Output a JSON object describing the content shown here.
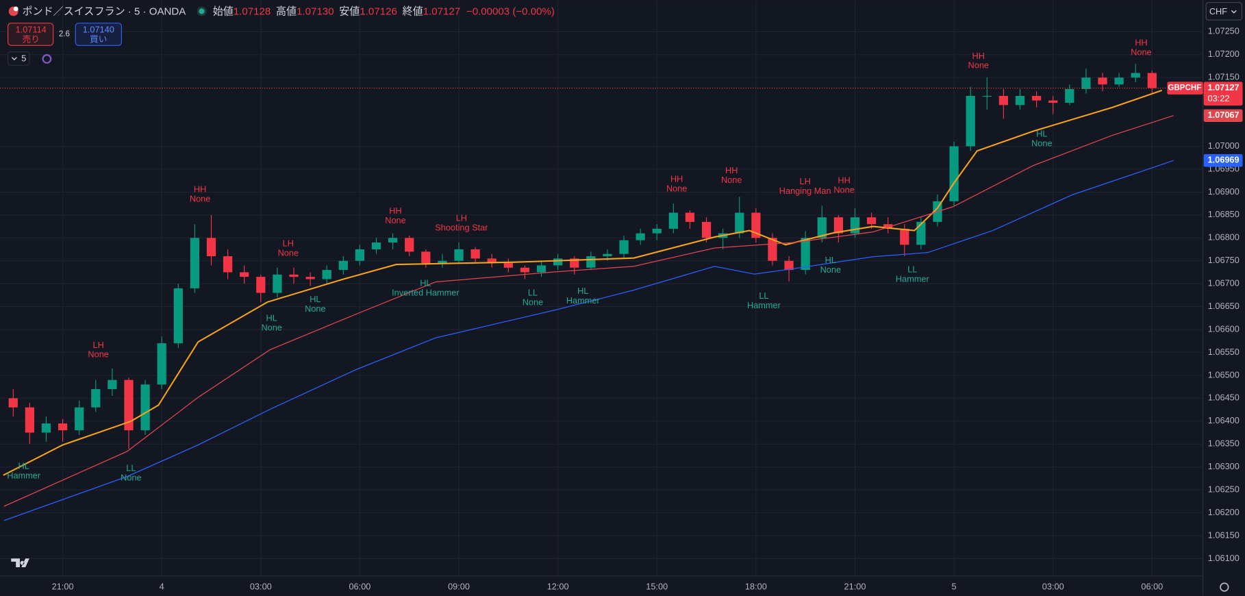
{
  "header": {
    "symbol": "ポンド／スイスフラン · 5 · OANDA",
    "ohlc": [
      {
        "label": "始値",
        "value": "1.07128"
      },
      {
        "label": "高値",
        "value": "1.07130"
      },
      {
        "label": "安値",
        "value": "1.07126"
      },
      {
        "label": "終値",
        "value": "1.07127"
      }
    ],
    "change": "−0.00003 (−0.00%)"
  },
  "trade": {
    "sell": {
      "price": "1.07114",
      "label": "売り"
    },
    "spread": "2.6",
    "buy": {
      "price": "1.07140",
      "label": "買い"
    },
    "interval": "5",
    "currency": "CHF"
  },
  "chart_data": {
    "type": "candlestick",
    "symbol": "GBPCHF",
    "countdown": "03:22",
    "up_color": "#089981",
    "down_color": "#f23645",
    "grid": true,
    "xlim": [
      -1.9,
      34.54
    ],
    "ylim": [
      1.06062,
      1.07319
    ],
    "xticks": [
      {
        "value": 0,
        "label": "21:00"
      },
      {
        "value": 3,
        "label": "4"
      },
      {
        "value": 6,
        "label": "03:00"
      },
      {
        "value": 9,
        "label": "06:00"
      },
      {
        "value": 12,
        "label": "09:00"
      },
      {
        "value": 15,
        "label": "12:00"
      },
      {
        "value": 18,
        "label": "15:00"
      },
      {
        "value": 21,
        "label": "18:00"
      },
      {
        "value": 24,
        "label": "21:00"
      },
      {
        "value": 27,
        "label": "5"
      },
      {
        "value": 30,
        "label": "03:00"
      },
      {
        "value": 33,
        "label": "06:00"
      }
    ],
    "yticks": [
      {
        "value": 1.061,
        "label": "1.06100"
      },
      {
        "value": 1.0615,
        "label": "1.06150"
      },
      {
        "value": 1.062,
        "label": "1.06200"
      },
      {
        "value": 1.0625,
        "label": "1.06250"
      },
      {
        "value": 1.063,
        "label": "1.06300"
      },
      {
        "value": 1.0635,
        "label": "1.06350"
      },
      {
        "value": 1.064,
        "label": "1.06400"
      },
      {
        "value": 1.0645,
        "label": "1.06450"
      },
      {
        "value": 1.065,
        "label": "1.06500"
      },
      {
        "value": 1.0655,
        "label": "1.06550"
      },
      {
        "value": 1.066,
        "label": "1.06600"
      },
      {
        "value": 1.0665,
        "label": "1.06650"
      },
      {
        "value": 1.067,
        "label": "1.06700"
      },
      {
        "value": 1.0675,
        "label": "1.06750"
      },
      {
        "value": 1.068,
        "label": "1.06800"
      },
      {
        "value": 1.0685,
        "label": "1.06850"
      },
      {
        "value": 1.069,
        "label": "1.06900"
      },
      {
        "value": 1.0695,
        "label": "1.06950"
      },
      {
        "value": 1.07,
        "label": "1.07000"
      },
      {
        "value": 1.0715,
        "label": "1.07150"
      },
      {
        "value": 1.072,
        "label": "1.07200"
      },
      {
        "value": 1.0725,
        "label": "1.07250"
      }
    ],
    "x": [
      -1.5,
      -1,
      -0.5,
      0,
      0.5,
      1,
      1.5,
      2,
      2.5,
      3,
      3.5,
      4,
      4.5,
      5,
      5.5,
      6,
      6.5,
      7,
      7.5,
      8,
      8.5,
      9,
      9.5,
      10,
      10.5,
      11,
      11.5,
      12,
      12.5,
      13,
      13.5,
      14,
      14.5,
      15,
      15.5,
      16,
      16.5,
      17,
      17.5,
      18,
      18.5,
      19,
      19.5,
      20,
      20.5,
      21,
      21.5,
      22,
      22.5,
      23,
      23.5,
      24,
      24.5,
      25,
      25.5,
      26,
      26.5,
      27,
      27.5,
      28,
      28.5,
      29,
      29.5,
      30,
      30.5,
      31,
      31.5,
      32,
      32.5,
      33
    ],
    "ohlc": [
      [
        1.0645,
        1.0647,
        1.0641,
        1.0643
      ],
      [
        1.0643,
        1.0644,
        1.0635,
        1.06375
      ],
      [
        1.06375,
        1.0641,
        1.06355,
        1.06395
      ],
      [
        1.06395,
        1.06405,
        1.06355,
        1.0638
      ],
      [
        1.0638,
        1.06445,
        1.0637,
        1.0643
      ],
      [
        1.0643,
        1.0649,
        1.0642,
        1.0647
      ],
      [
        1.0647,
        1.06515,
        1.06455,
        1.0649
      ],
      [
        1.0649,
        1.06495,
        1.0634,
        1.0638
      ],
      [
        1.0638,
        1.0649,
        1.0637,
        1.0648
      ],
      [
        1.0648,
        1.06585,
        1.0647,
        1.0657
      ],
      [
        1.0657,
        1.067,
        1.0656,
        1.0669
      ],
      [
        1.0669,
        1.0683,
        1.0668,
        1.068
      ],
      [
        1.068,
        1.0685,
        1.0674,
        1.0676
      ],
      [
        1.0676,
        1.06775,
        1.0671,
        1.06725
      ],
      [
        1.06725,
        1.0674,
        1.067,
        1.06715
      ],
      [
        1.06715,
        1.0672,
        1.0666,
        1.0668
      ],
      [
        1.0668,
        1.06735,
        1.0667,
        1.0672
      ],
      [
        1.0672,
        1.06735,
        1.067,
        1.06715
      ],
      [
        1.06715,
        1.06725,
        1.06695,
        1.0671
      ],
      [
        1.0671,
        1.0674,
        1.067,
        1.0673
      ],
      [
        1.0673,
        1.0676,
        1.0672,
        1.0675
      ],
      [
        1.0675,
        1.06785,
        1.0674,
        1.06775
      ],
      [
        1.06775,
        1.068,
        1.06765,
        1.0679
      ],
      [
        1.0679,
        1.0681,
        1.06775,
        1.068
      ],
      [
        1.068,
        1.06805,
        1.0676,
        1.0677
      ],
      [
        1.0677,
        1.06775,
        1.06735,
        1.06745
      ],
      [
        1.06745,
        1.06765,
        1.06735,
        1.0675
      ],
      [
        1.0675,
        1.0679,
        1.06745,
        1.06775
      ],
      [
        1.06775,
        1.0678,
        1.06745,
        1.06755
      ],
      [
        1.06755,
        1.06765,
        1.06735,
        1.06745
      ],
      [
        1.06745,
        1.06755,
        1.06725,
        1.06735
      ],
      [
        1.06735,
        1.0674,
        1.0671,
        1.06725
      ],
      [
        1.06725,
        1.0675,
        1.06715,
        1.0674
      ],
      [
        1.0674,
        1.06765,
        1.0673,
        1.06755
      ],
      [
        1.06755,
        1.0676,
        1.0672,
        1.06735
      ],
      [
        1.06735,
        1.0677,
        1.0673,
        1.0676
      ],
      [
        1.0676,
        1.06775,
        1.0675,
        1.06765
      ],
      [
        1.06765,
        1.06805,
        1.06755,
        1.06795
      ],
      [
        1.06795,
        1.0682,
        1.06785,
        1.0681
      ],
      [
        1.0681,
        1.0683,
        1.06795,
        1.0682
      ],
      [
        1.0682,
        1.06875,
        1.0681,
        1.06855
      ],
      [
        1.06855,
        1.0686,
        1.0682,
        1.06835
      ],
      [
        1.06835,
        1.06845,
        1.0679,
        1.068
      ],
      [
        1.068,
        1.0682,
        1.06775,
        1.0681
      ],
      [
        1.0681,
        1.0689,
        1.068,
        1.06855
      ],
      [
        1.06855,
        1.06865,
        1.0679,
        1.068
      ],
      [
        1.068,
        1.0681,
        1.0674,
        1.0675
      ],
      [
        1.0675,
        1.0676,
        1.06705,
        1.0673
      ],
      [
        1.0673,
        1.06815,
        1.0672,
        1.068
      ],
      [
        1.068,
        1.0687,
        1.0679,
        1.06845
      ],
      [
        1.06845,
        1.0685,
        1.0679,
        1.0681
      ],
      [
        1.0681,
        1.06865,
        1.068,
        1.06845
      ],
      [
        1.06845,
        1.06855,
        1.0682,
        1.0683
      ],
      [
        1.0683,
        1.06845,
        1.0681,
        1.0682
      ],
      [
        1.0682,
        1.0683,
        1.0676,
        1.06785
      ],
      [
        1.06785,
        1.06845,
        1.06775,
        1.06835
      ],
      [
        1.06835,
        1.06895,
        1.06825,
        1.0688
      ],
      [
        1.0688,
        1.0701,
        1.0687,
        1.07
      ],
      [
        1.07,
        1.0713,
        1.0699,
        1.0711
      ],
      [
        1.0711,
        1.0715,
        1.0708,
        1.0711
      ],
      [
        1.0711,
        1.07125,
        1.0706,
        1.0709
      ],
      [
        1.0709,
        1.07125,
        1.0708,
        1.0711
      ],
      [
        1.0711,
        1.0712,
        1.07085,
        1.071
      ],
      [
        1.071,
        1.0711,
        1.0707,
        1.07095
      ],
      [
        1.07095,
        1.07135,
        1.0709,
        1.07125
      ],
      [
        1.07125,
        1.0717,
        1.07115,
        1.0715
      ],
      [
        1.0715,
        1.0716,
        1.0712,
        1.07135
      ],
      [
        1.07135,
        1.0716,
        1.0713,
        1.0715
      ],
      [
        1.0715,
        1.0718,
        1.0714,
        1.0716
      ],
      [
        1.0716,
        1.07165,
        1.07115,
        1.07127
      ]
    ],
    "series": [
      {
        "color": "#f7a21b",
        "x": [
          -1.8,
          0,
          2.07,
          2.9,
          4.1,
          6.2,
          8.5,
          10.1,
          13.7,
          17.3,
          19.75,
          20.8,
          21.9,
          23.35,
          24.55,
          25.8,
          26.5,
          27,
          27.7,
          29.4,
          31.8,
          33.3
        ],
        "values": [
          1.06282,
          1.06348,
          1.064,
          1.06435,
          1.06573,
          1.0666,
          1.0671,
          1.06742,
          1.06747,
          1.06756,
          1.06802,
          1.06816,
          1.06785,
          1.06811,
          1.06825,
          1.06816,
          1.06865,
          1.0692,
          1.0699,
          1.07033,
          1.07085,
          1.07122
        ]
      },
      {
        "color": "#e0464e",
        "x": [
          -1.78,
          1.95,
          4.1,
          6.28,
          8.9,
          11.3,
          14.94,
          17.3,
          19.75,
          22.15,
          24.55,
          26.97,
          29.4,
          31.8,
          33.65
        ],
        "values": [
          1.06214,
          1.06334,
          1.06452,
          1.06556,
          1.06634,
          1.06704,
          1.06726,
          1.06738,
          1.06778,
          1.0679,
          1.06813,
          1.06868,
          1.06958,
          1.07024,
          1.07067
        ]
      },
      {
        "color": "#2962ff",
        "x": [
          -1.78,
          1.95,
          4.1,
          6.28,
          8.9,
          11.3,
          14.94,
          17.3,
          19.75,
          20.95,
          22.15,
          24.55,
          26.2,
          28.17,
          30.58,
          33.65
        ],
        "values": [
          1.06183,
          1.06279,
          1.06348,
          1.06426,
          1.06513,
          1.06582,
          1.06643,
          1.06686,
          1.06738,
          1.06721,
          1.06733,
          1.06759,
          1.06768,
          1.06816,
          1.06894,
          1.06969
        ]
      }
    ],
    "annotations": [
      {
        "x": -1.18,
        "y": 1.06301,
        "color": "#22ab94",
        "lines": [
          "HL",
          "Hammer"
        ]
      },
      {
        "x": 1.08,
        "y": 1.06565,
        "color": "#f23645",
        "lines": [
          "LH",
          "None"
        ]
      },
      {
        "x": 2.07,
        "y": 1.06296,
        "color": "#22ab94",
        "lines": [
          "LL",
          "None"
        ]
      },
      {
        "x": 4.16,
        "y": 1.06905,
        "color": "#f23645",
        "lines": [
          "HH",
          "None"
        ]
      },
      {
        "x": 6.33,
        "y": 1.06624,
        "color": "#22ab94",
        "lines": [
          "HL",
          "None"
        ]
      },
      {
        "x": 6.83,
        "y": 1.06787,
        "color": "#f23645",
        "lines": [
          "LH",
          "None"
        ]
      },
      {
        "x": 7.65,
        "y": 1.06665,
        "color": "#22ab94",
        "lines": [
          "HL",
          "None"
        ]
      },
      {
        "x": 10.08,
        "y": 1.06858,
        "color": "#f23645",
        "lines": [
          "HH",
          "None"
        ]
      },
      {
        "x": 10.99,
        "y": 1.067,
        "color": "#22ab94",
        "lines": [
          "HL",
          "Inverted Hammer"
        ]
      },
      {
        "x": 12.08,
        "y": 1.06842,
        "color": "#f23645",
        "lines": [
          "LH",
          "Shooting Star"
        ]
      },
      {
        "x": 14.24,
        "y": 1.06679,
        "color": "#22ab94",
        "lines": [
          "LL",
          "None"
        ]
      },
      {
        "x": 15.76,
        "y": 1.06683,
        "color": "#22ab94",
        "lines": [
          "HL",
          "Hammer"
        ]
      },
      {
        "x": 18.6,
        "y": 1.06927,
        "color": "#f23645",
        "lines": [
          "HH",
          "None"
        ]
      },
      {
        "x": 20.26,
        "y": 1.06946,
        "color": "#f23645",
        "lines": [
          "HH",
          "None"
        ]
      },
      {
        "x": 21.24,
        "y": 1.06672,
        "color": "#22ab94",
        "lines": [
          "LL",
          "Hammer"
        ]
      },
      {
        "x": 22.49,
        "y": 1.06922,
        "color": "#f23645",
        "lines": [
          "LH",
          "Hanging Man"
        ]
      },
      {
        "x": 23.26,
        "y": 1.0675,
        "color": "#22ab94",
        "lines": [
          "HL",
          "None"
        ]
      },
      {
        "x": 23.67,
        "y": 1.06924,
        "color": "#f23645",
        "lines": [
          "HH",
          "None"
        ]
      },
      {
        "x": 25.74,
        "y": 1.0673,
        "color": "#22ab94",
        "lines": [
          "LL",
          "Hammer"
        ]
      },
      {
        "x": 27.74,
        "y": 1.07196,
        "color": "#f23645",
        "lines": [
          "HH",
          "None"
        ]
      },
      {
        "x": 29.66,
        "y": 1.07026,
        "color": "#22ab94",
        "lines": [
          "HL",
          "None"
        ]
      },
      {
        "x": 32.67,
        "y": 1.07225,
        "color": "#f23645",
        "lines": [
          "HH",
          "None"
        ]
      }
    ]
  }
}
